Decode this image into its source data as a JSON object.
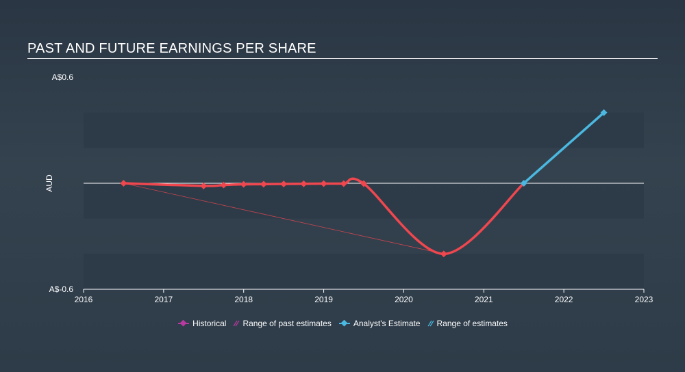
{
  "title": "PAST AND FUTURE EARNINGS PER SHARE",
  "chart_data": {
    "type": "line",
    "title": "PAST AND FUTURE EARNINGS PER SHARE",
    "ylabel": "AUD",
    "y_tick_labels": {
      "top": "A$0.6",
      "bottom": "A$-0.6"
    },
    "ylim": [
      -0.6,
      0.6
    ],
    "xlim": [
      2016,
      2023
    ],
    "x_ticks": [
      "2016",
      "2017",
      "2018",
      "2019",
      "2020",
      "2021",
      "2022",
      "2023"
    ],
    "grid_bands": true,
    "zero_line": true,
    "series": [
      {
        "name": "Historical",
        "color": "#f0474f",
        "marker": "diamond",
        "points": [
          {
            "x": 2016.5,
            "y": 0.0
          },
          {
            "x": 2017.5,
            "y": -0.015
          },
          {
            "x": 2017.75,
            "y": -0.01
          },
          {
            "x": 2018.0,
            "y": -0.006
          },
          {
            "x": 2018.25,
            "y": -0.005
          },
          {
            "x": 2018.5,
            "y": -0.004
          },
          {
            "x": 2018.75,
            "y": -0.003
          },
          {
            "x": 2019.0,
            "y": -0.002
          },
          {
            "x": 2019.25,
            "y": -0.002
          },
          {
            "x": 2019.5,
            "y": -0.002
          },
          {
            "x": 2020.5,
            "y": -0.4
          },
          {
            "x": 2021.5,
            "y": 0.0
          }
        ]
      },
      {
        "name": "Analyst's Estimate",
        "color": "#4ab8e0",
        "marker": "diamond",
        "points": [
          {
            "x": 2021.5,
            "y": 0.0
          },
          {
            "x": 2022.5,
            "y": 0.4
          }
        ]
      }
    ],
    "range_of_past_estimates": [
      {
        "x": 2016.5,
        "y": 0.0
      },
      {
        "x": 2020.5,
        "y": -0.4
      }
    ]
  },
  "legend": {
    "historical": "Historical",
    "past_range": "Range of past estimates",
    "analyst": "Analyst's Estimate",
    "future_range": "Range of estimates"
  },
  "colors": {
    "historical": "#f0474f",
    "analyst": "#4ab8e0",
    "legend_historical": "#b73aa0",
    "band": "#2c3947"
  }
}
